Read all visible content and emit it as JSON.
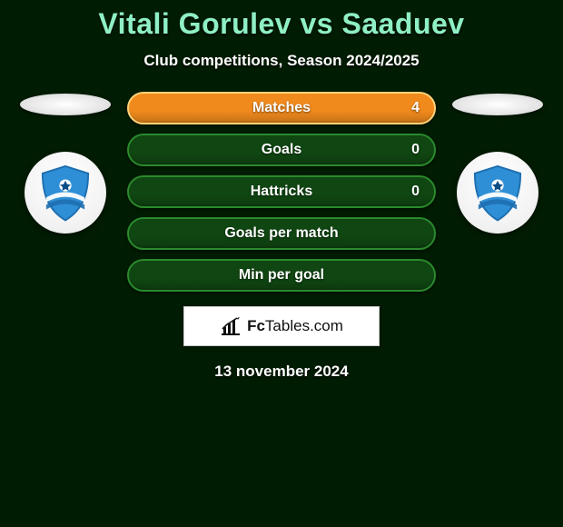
{
  "title": "Vitali Gorulev vs Saaduev",
  "subtitle": "Club competitions, Season 2024/2025",
  "date": "13 november 2024",
  "branding": {
    "text_left": "Fc",
    "text_right": "Tables.com"
  },
  "colors": {
    "background": "#001c02",
    "title": "#8fefc5",
    "bar_fill": "#104612",
    "bar_border": "#2a8a2d",
    "bar_highlight_fill": "#f08a1d",
    "bar_highlight_border": "#ffd27a"
  },
  "bars": [
    {
      "label": "Matches",
      "value_right": "4",
      "highlight": true
    },
    {
      "label": "Goals",
      "value_right": "0",
      "highlight": false
    },
    {
      "label": "Hattricks",
      "value_right": "0",
      "highlight": false
    },
    {
      "label": "Goals per match",
      "value_right": "",
      "highlight": false
    },
    {
      "label": "Min per goal",
      "value_right": "",
      "highlight": false
    }
  ],
  "clubs": {
    "left": {
      "shield_color": "#2f8fd6",
      "accent": "#1e6fb0"
    },
    "right": {
      "shield_color": "#2f8fd6",
      "accent": "#1e6fb0"
    }
  }
}
